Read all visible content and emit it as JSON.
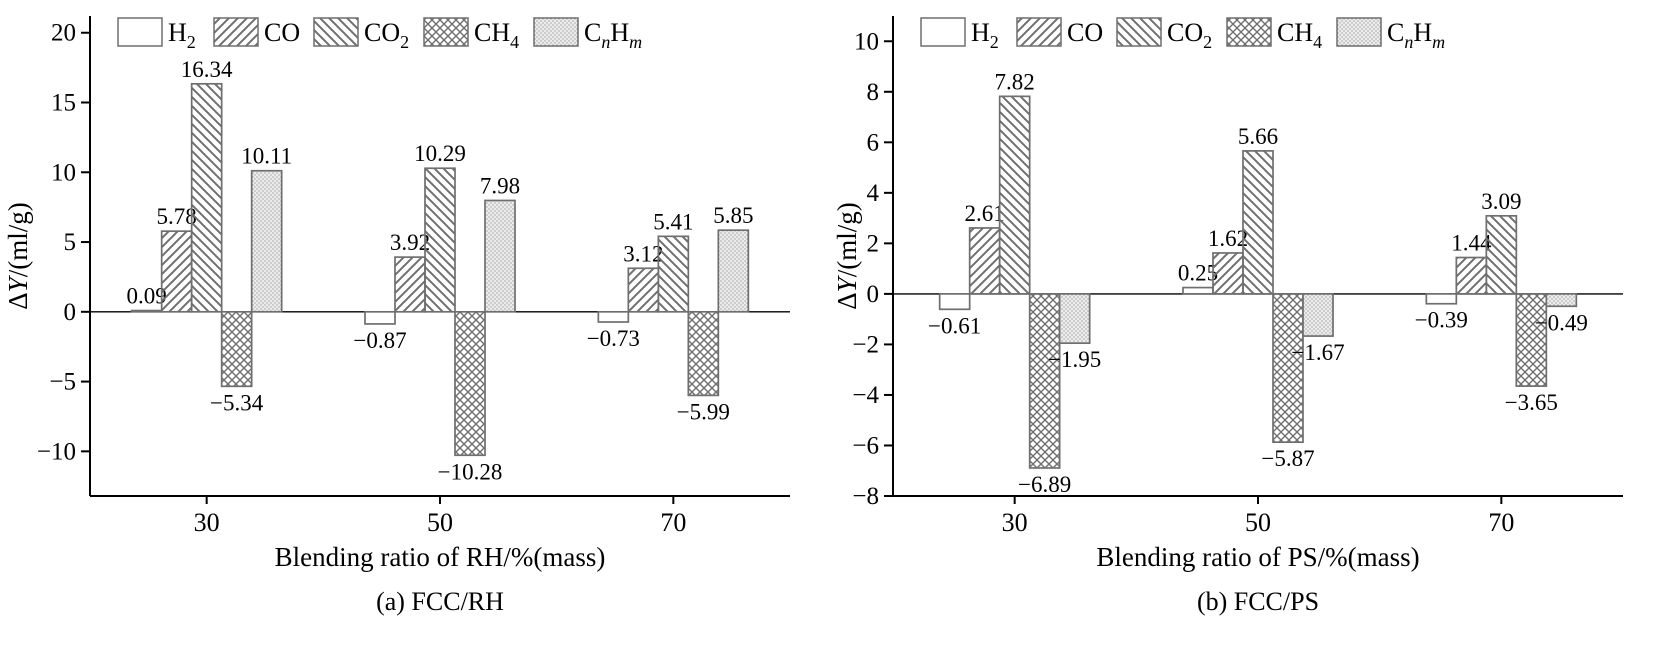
{
  "figure": {
    "background": "#ffffff"
  },
  "colors": {
    "axis": "#000000",
    "text": "#000000",
    "bar_stroke": "#6f6f6f",
    "hatch": "#6f6f6f",
    "dots_bg": "#ececec",
    "dots_dot": "#9e9e9e"
  },
  "chart_data": [
    {
      "type": "bar",
      "panel": "a",
      "title": "(a) FCC/RH",
      "xlabel": "Blending ratio of RH/%(mass)",
      "ylabel": "ΔY/(ml/g)",
      "ylabel_segments": [
        {
          "t": "Δ"
        },
        {
          "t": "Y",
          "italic": true
        },
        {
          "t": "/(ml/g)"
        }
      ],
      "categories": [
        "30",
        "50",
        "70"
      ],
      "ylim": [
        -13.2,
        21.2
      ],
      "yticks": [
        -10,
        -5,
        0,
        5,
        10,
        15,
        20
      ],
      "grid": false,
      "legend_position": "top-left-inside",
      "series": [
        {
          "id": "H2",
          "name": "H2",
          "name_segments": [
            {
              "t": "H"
            },
            {
              "t": "2",
              "sub": true
            }
          ],
          "pattern": "plain",
          "values": [
            0.09,
            -0.87,
            -0.73
          ]
        },
        {
          "id": "CO",
          "name": "CO",
          "name_segments": [
            {
              "t": "CO"
            }
          ],
          "pattern": "diagonal-forward",
          "values": [
            5.78,
            3.92,
            3.12
          ]
        },
        {
          "id": "CO2",
          "name": "CO2",
          "name_segments": [
            {
              "t": "CO"
            },
            {
              "t": "2",
              "sub": true
            }
          ],
          "pattern": "diagonal-backward",
          "values": [
            16.34,
            10.29,
            5.41
          ]
        },
        {
          "id": "CH4",
          "name": "CH4",
          "name_segments": [
            {
              "t": "CH"
            },
            {
              "t": "4",
              "sub": true
            }
          ],
          "pattern": "crosshatch",
          "values": [
            -5.34,
            -10.28,
            -5.99
          ]
        },
        {
          "id": "CnHm",
          "name": "CnHm",
          "name_segments": [
            {
              "t": "C"
            },
            {
              "t": "n",
              "sub": true,
              "italic": true
            },
            {
              "t": "H"
            },
            {
              "t": "m",
              "sub": true,
              "italic": true
            }
          ],
          "pattern": "dots",
          "values": [
            10.11,
            7.98,
            5.85
          ]
        }
      ]
    },
    {
      "type": "bar",
      "panel": "b",
      "title": "(b) FCC/PS",
      "xlabel": "Blending ratio of PS/%(mass)",
      "ylabel": "ΔY/(ml/g)",
      "ylabel_segments": [
        {
          "t": "Δ"
        },
        {
          "t": "Y",
          "italic": true
        },
        {
          "t": "/(ml/g)"
        }
      ],
      "categories": [
        "30",
        "50",
        "70"
      ],
      "ylim": [
        -8,
        11
      ],
      "yticks": [
        -8,
        -6,
        -4,
        -2,
        0,
        2,
        4,
        6,
        8,
        10
      ],
      "grid": false,
      "legend_position": "top-left-inside",
      "series": [
        {
          "id": "H2",
          "name": "H2",
          "name_segments": [
            {
              "t": "H"
            },
            {
              "t": "2",
              "sub": true
            }
          ],
          "pattern": "plain",
          "values": [
            -0.61,
            0.25,
            -0.39
          ]
        },
        {
          "id": "CO",
          "name": "CO",
          "name_segments": [
            {
              "t": "CO"
            }
          ],
          "pattern": "diagonal-forward",
          "values": [
            2.61,
            1.62,
            1.44
          ]
        },
        {
          "id": "CO2",
          "name": "CO2",
          "name_segments": [
            {
              "t": "CO"
            },
            {
              "t": "2",
              "sub": true
            }
          ],
          "pattern": "diagonal-backward",
          "values": [
            7.82,
            5.66,
            3.09
          ]
        },
        {
          "id": "CH4",
          "name": "CH4",
          "name_segments": [
            {
              "t": "CH"
            },
            {
              "t": "4",
              "sub": true
            }
          ],
          "pattern": "crosshatch",
          "values": [
            -6.89,
            -5.87,
            -3.65
          ]
        },
        {
          "id": "CnHm",
          "name": "CnHm",
          "name_segments": [
            {
              "t": "C"
            },
            {
              "t": "n",
              "sub": true,
              "italic": true
            },
            {
              "t": "H"
            },
            {
              "t": "m",
              "sub": true,
              "italic": true
            }
          ],
          "pattern": "dots",
          "values": [
            -1.95,
            -1.67,
            -0.49
          ]
        }
      ]
    }
  ]
}
